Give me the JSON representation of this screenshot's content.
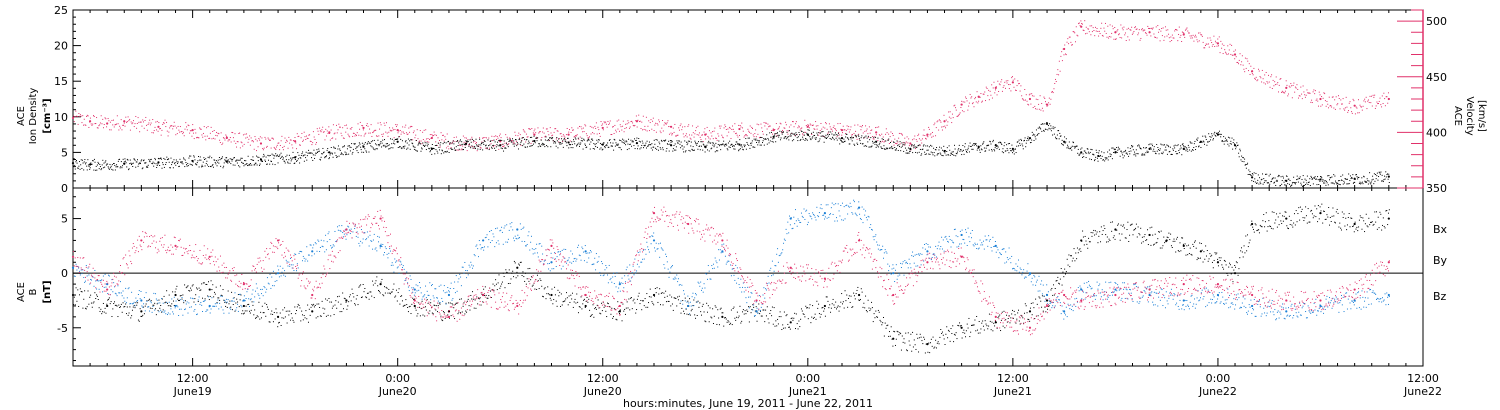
{
  "colors": {
    "density": "#000000",
    "velocity": "#e0306a",
    "bx": "#000000",
    "by": "#1a7fd6",
    "bz": "#e0306a"
  },
  "chart_data": [
    {
      "type": "scatter",
      "x_range_hours": [
        5,
        84
      ],
      "x_ticks": [
        {
          "hour": 12,
          "time": "12:00",
          "day": "June19"
        },
        {
          "hour": 24,
          "time": "0:00",
          "day": "June20"
        },
        {
          "hour": 36,
          "time": "12:00",
          "day": "June20"
        },
        {
          "hour": 48,
          "time": "0:00",
          "day": "June21"
        },
        {
          "hour": 60,
          "time": "12:00",
          "day": "June21"
        },
        {
          "hour": 72,
          "time": "0:00",
          "day": "June22"
        },
        {
          "hour": 84,
          "time": "12:00",
          "day": "June22"
        }
      ],
      "xlabel": "hours:minutes, June 19, 2011 - June 22, 2011",
      "left_axis": {
        "title_lines": [
          "ACE",
          "Ion Density"
        ],
        "unit": "[cm⁻³]",
        "ylim": [
          0,
          25
        ],
        "ticks": [
          0,
          5,
          10,
          15,
          20,
          25
        ]
      },
      "right_axis": {
        "title_lines": [
          "ACE",
          "Velocity"
        ],
        "unit": "[km/s]",
        "ylim": [
          350,
          510
        ],
        "ticks": [
          350,
          400,
          450,
          500
        ]
      },
      "series": [
        {
          "key": "density",
          "axis": "left",
          "x": [
            5,
            6,
            8,
            10,
            12,
            14,
            16,
            18,
            20,
            22,
            24,
            26,
            28,
            30,
            32,
            34,
            36,
            38,
            40,
            42,
            44,
            46,
            48,
            50,
            52,
            54,
            56,
            58,
            59,
            60,
            61,
            62,
            63,
            64,
            65,
            66,
            68,
            70,
            71,
            72,
            73,
            74,
            76,
            78,
            80,
            82
          ],
          "y": [
            3.5,
            3.3,
            3.4,
            3.6,
            3.8,
            3.7,
            4.0,
            4.3,
            5.0,
            5.8,
            6.5,
            5.5,
            6.2,
            6.0,
            6.6,
            6.4,
            6.1,
            6.3,
            6.0,
            5.8,
            6.1,
            7.2,
            7.5,
            7.0,
            6.5,
            5.5,
            5.2,
            5.8,
            6.0,
            5.5,
            7.0,
            9.0,
            6.5,
            5.0,
            4.5,
            5.0,
            5.5,
            5.5,
            6.5,
            7.5,
            6.0,
            1.5,
            1.0,
            1.2,
            1.3,
            1.6
          ]
        },
        {
          "key": "velocity",
          "axis": "right",
          "x": [
            5,
            6,
            7,
            8,
            10,
            12,
            14,
            16,
            18,
            20,
            22,
            24,
            26,
            28,
            30,
            32,
            34,
            36,
            38,
            40,
            42,
            44,
            46,
            48,
            50,
            52,
            54,
            55,
            56,
            57,
            58,
            59,
            60,
            61,
            62,
            63,
            64,
            66,
            68,
            70,
            72,
            73,
            74,
            76,
            78,
            80,
            82
          ],
          "y": [
            413,
            410,
            408,
            410,
            405,
            402,
            395,
            390,
            392,
            400,
            404,
            402,
            395,
            390,
            392,
            398,
            398,
            404,
            410,
            405,
            398,
            403,
            402,
            405,
            402,
            400,
            390,
            398,
            410,
            425,
            432,
            440,
            445,
            430,
            425,
            475,
            495,
            490,
            490,
            488,
            480,
            470,
            455,
            440,
            430,
            424,
            430
          ]
        }
      ]
    },
    {
      "type": "scatter",
      "x_range_hours": [
        5,
        84
      ],
      "left_axis": {
        "title_lines": [
          "ACE",
          "B"
        ],
        "unit": "[nT]",
        "ylim": [
          -8.5,
          7.8
        ],
        "ticks": [
          -5,
          0,
          5
        ]
      },
      "zero_line": true,
      "legend": [
        "Bx",
        "By",
        "Bz"
      ],
      "legend_placement": "right",
      "series": [
        {
          "key": "bx",
          "name": "Bx",
          "x": [
            5,
            7,
            9,
            11,
            13,
            15,
            17,
            19,
            21,
            23,
            25,
            27,
            29,
            31,
            33,
            35,
            37,
            39,
            41,
            43,
            45,
            47,
            49,
            51,
            53,
            55,
            57,
            59,
            61,
            62,
            64,
            66,
            68,
            69,
            70,
            71,
            72,
            73,
            74,
            76,
            78,
            80,
            82
          ],
          "y": [
            -2.0,
            -3.0,
            -3.5,
            -2.0,
            -1.5,
            -3.0,
            -4.0,
            -3.5,
            -2.5,
            -1.0,
            -3.0,
            -3.5,
            -2.0,
            0.5,
            -2.0,
            -3.0,
            -3.5,
            -2.0,
            -3.0,
            -4.0,
            -3.5,
            -4.5,
            -3.0,
            -2.0,
            -6.0,
            -6.5,
            -5.0,
            -4.5,
            -3.5,
            -2.5,
            3.0,
            4.0,
            3.5,
            3.0,
            2.5,
            2.0,
            1.0,
            0.0,
            4.5,
            5.0,
            5.5,
            4.5,
            5.0
          ]
        },
        {
          "key": "by",
          "name": "By",
          "x": [
            5,
            7,
            9,
            11,
            13,
            15,
            17,
            19,
            21,
            23,
            25,
            27,
            29,
            31,
            33,
            35,
            37,
            39,
            41,
            43,
            45,
            47,
            49,
            51,
            53,
            55,
            57,
            59,
            61,
            62,
            63,
            64,
            66,
            68,
            70,
            72,
            74,
            76,
            78,
            80,
            82
          ],
          "y": [
            0.5,
            -1.0,
            -2.5,
            -3.0,
            -3.0,
            -2.5,
            0.0,
            2.0,
            4.0,
            2.5,
            -1.5,
            -2.0,
            3.0,
            4.0,
            1.0,
            2.0,
            -1.0,
            3.0,
            -3.0,
            2.0,
            -3.5,
            5.0,
            5.5,
            6.0,
            0.0,
            2.0,
            3.5,
            2.5,
            0.0,
            -2.0,
            -3.5,
            -1.5,
            -1.5,
            -2.0,
            -2.5,
            -2.0,
            -3.0,
            -3.5,
            -3.0,
            -2.5,
            -2.0
          ]
        },
        {
          "key": "bz",
          "name": "Bz",
          "x": [
            5,
            7,
            9,
            11,
            13,
            15,
            17,
            19,
            21,
            23,
            25,
            27,
            29,
            31,
            33,
            35,
            37,
            39,
            41,
            43,
            45,
            47,
            49,
            51,
            53,
            55,
            57,
            59,
            61,
            62,
            63,
            64,
            66,
            68,
            70,
            72,
            74,
            76,
            78,
            80,
            82
          ],
          "y": [
            1.5,
            -1.5,
            3.0,
            2.5,
            1.5,
            -1.0,
            3.0,
            -2.0,
            4.0,
            5.0,
            -2.5,
            -4.0,
            -2.0,
            -3.0,
            2.5,
            -2.0,
            -3.0,
            5.5,
            4.5,
            3.0,
            -2.5,
            0.5,
            -0.5,
            3.0,
            -2.0,
            1.0,
            1.5,
            -4.0,
            -5.0,
            -3.0,
            -2.0,
            -2.5,
            -2.0,
            -1.5,
            -1.0,
            -1.0,
            -2.0,
            -2.5,
            -2.5,
            -1.5,
            1.0
          ]
        }
      ]
    }
  ]
}
